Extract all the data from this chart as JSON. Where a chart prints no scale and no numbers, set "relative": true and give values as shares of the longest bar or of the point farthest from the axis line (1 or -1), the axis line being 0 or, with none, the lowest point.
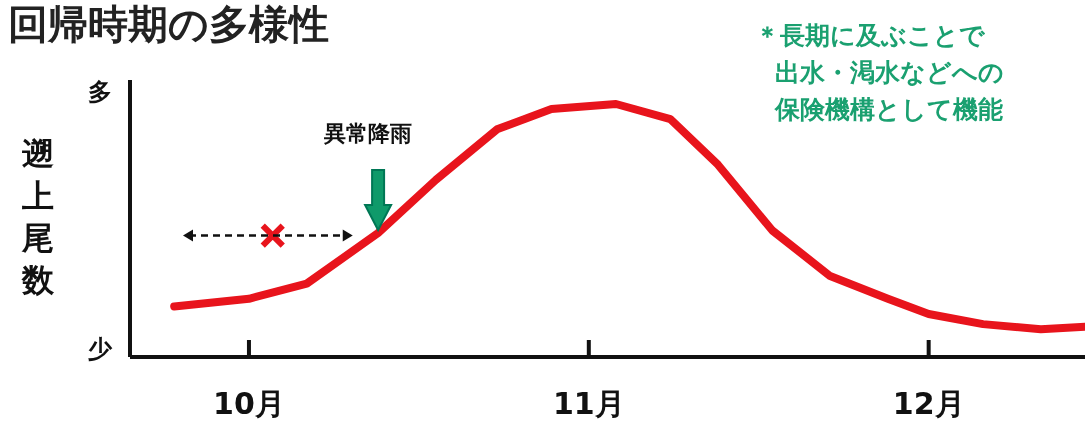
{
  "chart_data": {
    "type": "line",
    "title": "回帰時期の多様性",
    "ylabel": "遡上尾数",
    "relative": true,
    "x": [
      9.78,
      10,
      10.17,
      10.38,
      10.55,
      10.73,
      10.89,
      11.08,
      11.24,
      11.38,
      11.54,
      11.71,
      11.88,
      12,
      12.16,
      12.33,
      12.46
    ],
    "xlim": [
      9.65,
      12.46
    ],
    "xticks": [
      {
        "value": 10,
        "label": "10月"
      },
      {
        "value": 11,
        "label": "11月"
      },
      {
        "value": 12,
        "label": "12月"
      }
    ],
    "series": [
      {
        "color": "#e8141c",
        "values": [
          0.2,
          0.23,
          0.29,
          0.49,
          0.7,
          0.9,
          0.98,
          1,
          0.94,
          0.76,
          0.5,
          0.32,
          0.23,
          0.17,
          0.13,
          0.11,
          0.12
        ]
      },
      {
        "type": "scatter",
        "marker": "cross",
        "color": "#e8141c",
        "x": [
          10.07
        ],
        "values": [
          0.48
        ]
      }
    ],
    "annotations": [
      "多",
      "少",
      "異常降雨",
      "＊長期に及ぶことで",
      "出水・渇水などへの",
      "保険機構として機能"
    ]
  }
}
